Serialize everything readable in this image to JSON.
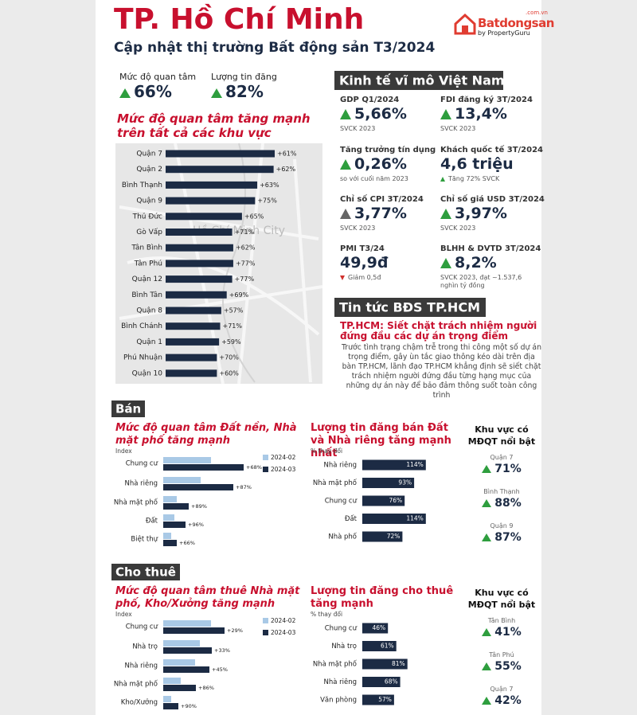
{
  "header": {
    "title": "TP. Hồ Chí Minh",
    "subtitle": "Cập nhật thị trường Bất động sản T3/2024",
    "logo": {
      "name": "Batdongsan",
      "domain": ".com.vn",
      "tagline": "by PropertyGuru"
    }
  },
  "summary": [
    {
      "label": "Mức độ quan tâm",
      "value": "66%"
    },
    {
      "label": "Lượng tin đăng",
      "value": "82%"
    }
  ],
  "map_chart": {
    "type": "bar",
    "title": "Mức độ quan tâm tăng mạnh trên tất cả các khu vực",
    "categories": [
      "Quận 7",
      "Quận 2",
      "Bình Thạnh",
      "Quận 9",
      "Thủ Đức",
      "Gò Vấp",
      "Tân Bình",
      "Tân Phú",
      "Quận 12",
      "Bình Tân",
      "Quận 8",
      "Bình Chánh",
      "Quận 1",
      "Phú Nhuận",
      "Quận 10"
    ],
    "values": [
      100,
      99,
      84,
      82,
      70,
      61,
      62,
      62,
      61,
      56,
      51,
      50,
      49,
      47,
      47
    ],
    "change_labels": [
      "+61%",
      "+62%",
      "+63%",
      "+75%",
      "+65%",
      "+71%",
      "+62%",
      "+77%",
      "+77%",
      "+69%",
      "+57%",
      "+71%",
      "+59%",
      "+70%",
      "+60%"
    ],
    "xlim": [
      0,
      100
    ],
    "color": "#1c2b44",
    "map_label": "Hồ Chí Minh City"
  },
  "macro": {
    "title": "Kinh tế vĩ mô Việt Nam",
    "items": [
      {
        "label": "GDP Q1/2024",
        "value": "5,66%",
        "note": "SVCK 2023",
        "trend": "up"
      },
      {
        "label": "FDI đăng ký 3T/2024",
        "value": "13,4%",
        "note": "SVCK 2023",
        "trend": "up"
      },
      {
        "label": "Tăng trưởng tín dụng",
        "value": "0,26%",
        "note": "so với cuối năm 2023",
        "trend": "up"
      },
      {
        "label": "Khách quốc tế 3T/2024",
        "value": "4,6 triệu",
        "note": "Tăng 72% SVCK",
        "trend": "none",
        "note_trend": "up"
      },
      {
        "label": "Chỉ số CPI 3T/2024",
        "value": "3,77%",
        "note": "SVCK 2023",
        "trend": "up-gray"
      },
      {
        "label": "Chỉ số giá USD 3T/2024",
        "value": "3,97%",
        "note": "SVCK 2023",
        "trend": "up"
      },
      {
        "label": "PMI T3/24",
        "value": "49,9đ",
        "note": "Giảm 0,5đ",
        "trend": "none",
        "note_trend": "down"
      },
      {
        "label": "BLHH & DVTD 3T/2024",
        "value": "8,2%",
        "note": "SVCK 2023, đạt ~1.537,6 nghìn tỷ đồng",
        "trend": "up"
      }
    ]
  },
  "news": {
    "title": "Tin tức BĐS TP.HCM",
    "headline": "TP.HCM: Siết chặt trách nhiệm người đứng đầu các dự án trọng điểm",
    "body": "Trước tình trạng chậm trễ trong thi công một số dự án trọng điểm, gây ùn tắc giao thông kéo dài trên địa bàn TP.HCM, lãnh đạo TP.HCM khẳng định sẽ siết chặt trách nhiệm người đứng đầu từng hạng mục của những dự án này để bảo đảm thông suốt toàn công trình"
  },
  "sections": [
    {
      "title": "Bán",
      "interest_chart": {
        "type": "grouped-bar",
        "title": "Mức độ quan tâm Đất nền, Nhà mặt phố tăng mạnh",
        "axis_label": "Index",
        "categories": [
          "Chung cư",
          "Nhà riêng",
          "Nhà mặt phố",
          "Đất",
          "Biệt thự"
        ],
        "series": [
          {
            "name": "2024-02",
            "color": "#a9c9e6",
            "values": [
              60,
              47,
              17,
              14,
              10
            ]
          },
          {
            "name": "2024-03",
            "color": "#1c2b44",
            "values": [
              101,
              88,
              32,
              28,
              17
            ]
          }
        ],
        "change_labels": [
          "+68%",
          "+87%",
          "+89%",
          "+96%",
          "+66%"
        ],
        "xlim": [
          0,
          110
        ]
      },
      "listing_chart": {
        "type": "bar",
        "title": "Lượng tin đăng bán Đất và Nhà riêng tăng mạnh nhất",
        "axis_label": "% thay đổi",
        "categories": [
          "Nhà riêng",
          "Nhà mặt phố",
          "Chung cư",
          "Đất",
          "Nhà phố"
        ],
        "values": [
          114,
          93,
          76,
          114,
          72
        ],
        "value_labels": [
          "114%",
          "93%",
          "76%",
          "114%",
          "72%"
        ],
        "xlim": [
          0,
          120
        ],
        "color": "#1c2b44"
      },
      "highlight": {
        "title": "Khu vực có MĐQT nổi bật",
        "regions": [
          {
            "name": "Quận 7",
            "value": "71%"
          },
          {
            "name": "Bình Thạnh",
            "value": "88%"
          },
          {
            "name": "Quận 9",
            "value": "87%"
          }
        ]
      }
    },
    {
      "title": "Cho thuê",
      "interest_chart": {
        "type": "grouped-bar",
        "title": "Mức độ quan tâm thuê Nhà mặt phố, Kho/Xưởng tăng mạnh",
        "axis_label": "Index",
        "categories": [
          "Chung cư",
          "Nhà trọ",
          "Nhà riêng",
          "Nhà mặt phố",
          "Kho/Xưởng"
        ],
        "series": [
          {
            "name": "2024-02",
            "color": "#a9c9e6",
            "values": [
              60,
              46,
              40,
              22,
              10
            ]
          },
          {
            "name": "2024-03",
            "color": "#1c2b44",
            "values": [
              77,
              61,
              58,
              41,
              19
            ]
          }
        ],
        "change_labels": [
          "+29%",
          "+33%",
          "+45%",
          "+86%",
          "+90%"
        ],
        "xlim": [
          0,
          110
        ]
      },
      "listing_chart": {
        "type": "bar",
        "title": "Lượng tin đăng cho thuê tăng mạnh",
        "axis_label": "% thay đổi",
        "categories": [
          "Chung cư",
          "Nhà trọ",
          "Nhà mặt phố",
          "Nhà riêng",
          "Văn phòng"
        ],
        "values": [
          46,
          61,
          81,
          68,
          57
        ],
        "value_labels": [
          "46%",
          "61%",
          "81%",
          "68%",
          "57%"
        ],
        "xlim": [
          0,
          120
        ],
        "color": "#1c2b44"
      },
      "highlight": {
        "title": "Khu vực có MĐQT nổi bật",
        "regions": [
          {
            "name": "Tân Bình",
            "value": "41%"
          },
          {
            "name": "Tân Phú",
            "value": "55%"
          },
          {
            "name": "Quận 7",
            "value": "42%"
          }
        ]
      }
    }
  ]
}
